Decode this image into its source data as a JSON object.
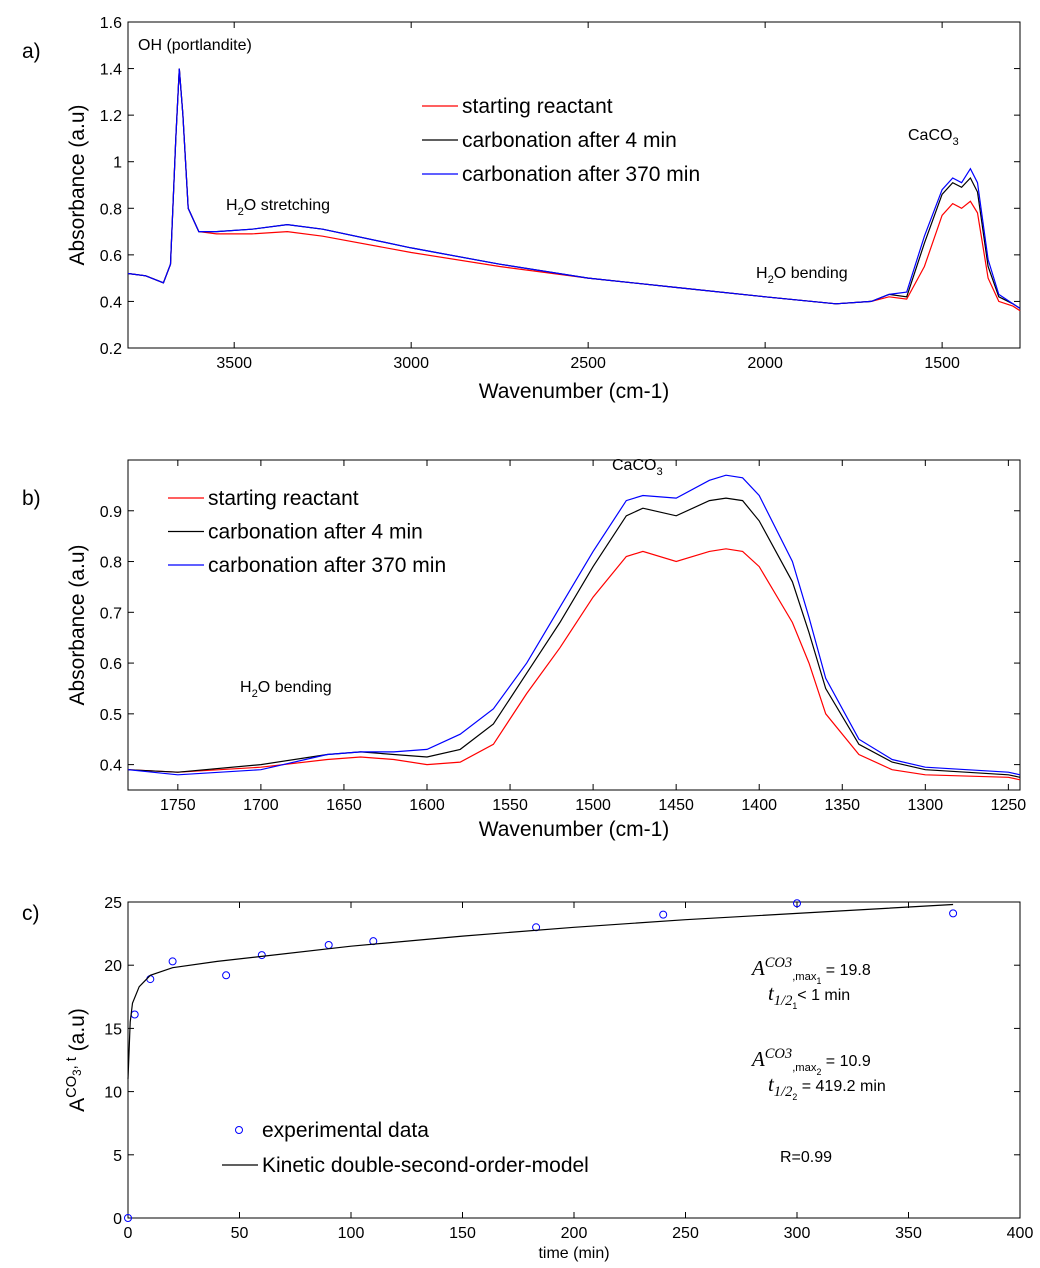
{
  "chart_data": [
    {
      "type": "line",
      "panel": "a)",
      "xlabel": "Wavenumber (cm-1)",
      "ylabel": "Absorbance (a.u)",
      "xlim": [
        3800,
        1280
      ],
      "ylim": [
        0.2,
        1.6
      ],
      "xticks": [
        3500,
        3000,
        2500,
        2000,
        1500
      ],
      "yticks": [
        0.2,
        0.4,
        0.6,
        0.8,
        1,
        1.2,
        1.4,
        1.6
      ],
      "annotations": [
        [
          {
            "t": "OH (portlandite)"
          }
        ],
        [
          {
            "t": "H"
          },
          {
            "t": "2",
            "pos": "sub"
          },
          {
            "t": "O stretching"
          }
        ],
        [
          {
            "t": "H"
          },
          {
            "t": "2",
            "pos": "sub"
          },
          {
            "t": "O bending"
          }
        ],
        [
          {
            "t": "CaCO"
          },
          {
            "t": "3",
            "pos": "sub"
          }
        ]
      ],
      "x": [
        3800,
        3750,
        3700,
        3680,
        3665,
        3655,
        3645,
        3630,
        3600,
        3550,
        3450,
        3350,
        3250,
        3000,
        2750,
        2500,
        2250,
        2000,
        1800,
        1700,
        1650,
        1600,
        1550,
        1500,
        1470,
        1445,
        1420,
        1400,
        1370,
        1340,
        1300,
        1280
      ],
      "series": [
        {
          "name": "starting reactant",
          "color": "#ff0000",
          "values": [
            0.52,
            0.51,
            0.48,
            0.56,
            1.1,
            1.4,
            1.2,
            0.8,
            0.7,
            0.69,
            0.69,
            0.7,
            0.68,
            0.61,
            0.55,
            0.5,
            0.46,
            0.42,
            0.39,
            0.4,
            0.42,
            0.41,
            0.55,
            0.77,
            0.82,
            0.8,
            0.83,
            0.78,
            0.5,
            0.4,
            0.38,
            0.36
          ]
        },
        {
          "name": "carbonation after 4 min",
          "color": "#000000",
          "values": [
            0.52,
            0.51,
            0.48,
            0.56,
            1.1,
            1.4,
            1.2,
            0.8,
            0.7,
            0.7,
            0.71,
            0.73,
            0.71,
            0.63,
            0.56,
            0.5,
            0.46,
            0.42,
            0.39,
            0.4,
            0.43,
            0.42,
            0.65,
            0.86,
            0.91,
            0.89,
            0.93,
            0.87,
            0.55,
            0.42,
            0.39,
            0.37
          ]
        },
        {
          "name": "carbonation after 370 min",
          "color": "#0000ff",
          "values": [
            0.52,
            0.51,
            0.48,
            0.56,
            1.1,
            1.4,
            1.2,
            0.8,
            0.7,
            0.7,
            0.71,
            0.73,
            0.71,
            0.63,
            0.56,
            0.5,
            0.46,
            0.42,
            0.39,
            0.4,
            0.43,
            0.44,
            0.68,
            0.88,
            0.93,
            0.91,
            0.97,
            0.91,
            0.58,
            0.43,
            0.39,
            0.37
          ]
        }
      ]
    },
    {
      "type": "line",
      "panel": "b)",
      "xlabel": "Wavenumber (cm-1)",
      "ylabel": "Absorbance (a.u)",
      "xlim": [
        1780,
        1243
      ],
      "ylim": [
        0.35,
        1.0
      ],
      "xticks": [
        1750,
        1700,
        1650,
        1600,
        1550,
        1500,
        1450,
        1400,
        1350,
        1300,
        1250
      ],
      "yticks": [
        0.4,
        0.5,
        0.6,
        0.7,
        0.8,
        0.9
      ],
      "annotations": [
        [
          {
            "t": "CaCO"
          },
          {
            "t": "3",
            "pos": "sub"
          }
        ],
        [
          {
            "t": "H"
          },
          {
            "t": "2",
            "pos": "sub"
          },
          {
            "t": "O bending"
          }
        ]
      ],
      "x": [
        1780,
        1750,
        1700,
        1660,
        1640,
        1620,
        1600,
        1580,
        1560,
        1540,
        1520,
        1500,
        1480,
        1470,
        1450,
        1430,
        1420,
        1410,
        1400,
        1380,
        1370,
        1360,
        1340,
        1320,
        1300,
        1250,
        1243
      ],
      "series": [
        {
          "name": "starting reactant",
          "color": "#ff0000",
          "values": [
            0.39,
            0.385,
            0.395,
            0.41,
            0.415,
            0.41,
            0.4,
            0.405,
            0.44,
            0.54,
            0.63,
            0.73,
            0.81,
            0.82,
            0.8,
            0.82,
            0.825,
            0.82,
            0.79,
            0.68,
            0.6,
            0.5,
            0.42,
            0.39,
            0.38,
            0.375,
            0.37
          ]
        },
        {
          "name": "carbonation after 4 min",
          "color": "#000000",
          "values": [
            0.39,
            0.385,
            0.4,
            0.42,
            0.425,
            0.42,
            0.415,
            0.43,
            0.48,
            0.58,
            0.68,
            0.79,
            0.89,
            0.905,
            0.89,
            0.92,
            0.925,
            0.92,
            0.88,
            0.76,
            0.66,
            0.55,
            0.44,
            0.405,
            0.39,
            0.38,
            0.375
          ]
        },
        {
          "name": "carbonation after 370 min",
          "color": "#0000ff",
          "values": [
            0.39,
            0.38,
            0.39,
            0.42,
            0.425,
            0.425,
            0.43,
            0.46,
            0.51,
            0.6,
            0.71,
            0.82,
            0.92,
            0.93,
            0.925,
            0.96,
            0.97,
            0.965,
            0.93,
            0.8,
            0.69,
            0.57,
            0.45,
            0.41,
            0.395,
            0.385,
            0.38
          ]
        }
      ]
    },
    {
      "type": "scatter",
      "panel": "c)",
      "xlabel": "time (min)",
      "ylabel": [
        {
          "t": "A"
        },
        {
          "t": "CO",
          "pos": "sup"
        },
        {
          "t": "3",
          "pos": "supsub"
        },
        {
          "t": ", t",
          "pos": "sup"
        },
        {
          "t": "  (a.u)"
        }
      ],
      "xlim": [
        0,
        400
      ],
      "ylim": [
        0,
        25
      ],
      "xticks": [
        0,
        50,
        100,
        150,
        200,
        250,
        300,
        350,
        400
      ],
      "yticks": [
        0,
        5,
        10,
        15,
        20,
        25
      ],
      "annotations": [
        [
          {
            "t": "A",
            "italic": true
          },
          {
            "t": "CO3",
            "pos": "sup",
            "italic": true
          },
          {
            "t": ",max",
            "pos": "sub"
          },
          {
            "t": "1",
            "pos": "subsub"
          },
          {
            "t": " = 19.8"
          }
        ],
        [
          {
            "t": "t",
            "italic": true
          },
          {
            "t": "1/2",
            "pos": "sub",
            "italic": true
          },
          {
            "t": "1",
            "pos": "subsub"
          },
          {
            "t": "< 1 min"
          }
        ],
        [
          {
            "t": "A",
            "italic": true
          },
          {
            "t": "CO3",
            "pos": "sup",
            "italic": true
          },
          {
            "t": ",max",
            "pos": "sub"
          },
          {
            "t": "2",
            "pos": "subsub"
          },
          {
            "t": " = 10.9"
          }
        ],
        [
          {
            "t": "t",
            "italic": true
          },
          {
            "t": "1/2",
            "pos": "sub",
            "italic": true
          },
          {
            "t": "2",
            "pos": "subsub"
          },
          {
            "t": " = 419.2 min"
          }
        ],
        [
          {
            "t": "R=0.99"
          }
        ]
      ],
      "series": [
        {
          "name": "experimental data",
          "type": "scatter",
          "color": "#0000ff",
          "x": [
            0,
            3,
            10,
            20,
            44,
            60,
            90,
            110,
            183,
            240,
            300,
            370
          ],
          "values": [
            0,
            16.1,
            18.9,
            20.3,
            19.2,
            20.8,
            21.6,
            21.9,
            23,
            24,
            24.9,
            24.1
          ]
        },
        {
          "name": "Kinetic double-second-order-model",
          "type": "line",
          "color": "#000000",
          "x": [
            0,
            1,
            2,
            5,
            10,
            20,
            40,
            60,
            100,
            150,
            200,
            250,
            300,
            370
          ],
          "values": [
            11,
            15.5,
            17,
            18.3,
            19.2,
            19.8,
            20.3,
            20.7,
            21.5,
            22.3,
            23,
            23.6,
            24.1,
            24.8
          ]
        }
      ]
    }
  ]
}
